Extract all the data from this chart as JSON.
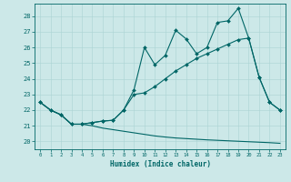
{
  "title": "",
  "xlabel": "Humidex (Indice chaleur)",
  "background_color": "#cce8e8",
  "line_color": "#006666",
  "grid_color": "#aad4d4",
  "xlim": [
    -0.5,
    23.5
  ],
  "ylim": [
    19.5,
    28.8
  ],
  "yticks": [
    20,
    21,
    22,
    23,
    24,
    25,
    26,
    27,
    28
  ],
  "xticks": [
    0,
    1,
    2,
    3,
    4,
    5,
    6,
    7,
    8,
    9,
    10,
    11,
    12,
    13,
    14,
    15,
    16,
    17,
    18,
    19,
    20,
    21,
    22,
    23
  ],
  "series1_x": [
    0,
    1,
    2,
    3,
    4,
    5,
    6,
    7,
    8,
    9,
    10,
    11,
    12,
    13,
    14,
    15,
    16,
    17,
    18,
    19,
    20,
    21,
    22,
    23
  ],
  "series1_y": [
    22.5,
    22.0,
    21.7,
    21.1,
    21.1,
    21.2,
    21.3,
    21.35,
    22.0,
    23.3,
    26.0,
    24.9,
    25.5,
    27.1,
    26.55,
    25.6,
    26.0,
    27.6,
    27.7,
    28.5,
    26.6,
    24.1,
    22.5,
    22.0
  ],
  "series2_x": [
    0,
    1,
    2,
    3,
    4,
    5,
    6,
    7,
    8,
    9,
    10,
    11,
    12,
    13,
    14,
    15,
    16,
    17,
    18,
    19,
    20,
    21,
    22,
    23
  ],
  "series2_y": [
    22.5,
    22.0,
    21.7,
    21.1,
    21.1,
    21.2,
    21.3,
    21.35,
    22.0,
    23.0,
    23.1,
    23.5,
    24.0,
    24.5,
    24.9,
    25.3,
    25.6,
    25.9,
    26.2,
    26.5,
    26.6,
    24.1,
    22.5,
    22.0
  ],
  "series3_x": [
    0,
    1,
    2,
    3,
    4,
    5,
    6,
    7,
    8,
    9,
    10,
    11,
    12,
    13,
    14,
    15,
    16,
    17,
    18,
    19,
    20,
    21,
    22,
    23
  ],
  "series3_y": [
    22.5,
    22.0,
    21.7,
    21.1,
    21.1,
    21.0,
    20.85,
    20.75,
    20.65,
    20.55,
    20.45,
    20.35,
    20.28,
    20.22,
    20.18,
    20.14,
    20.1,
    20.07,
    20.04,
    20.01,
    19.98,
    19.95,
    19.92,
    19.88
  ]
}
